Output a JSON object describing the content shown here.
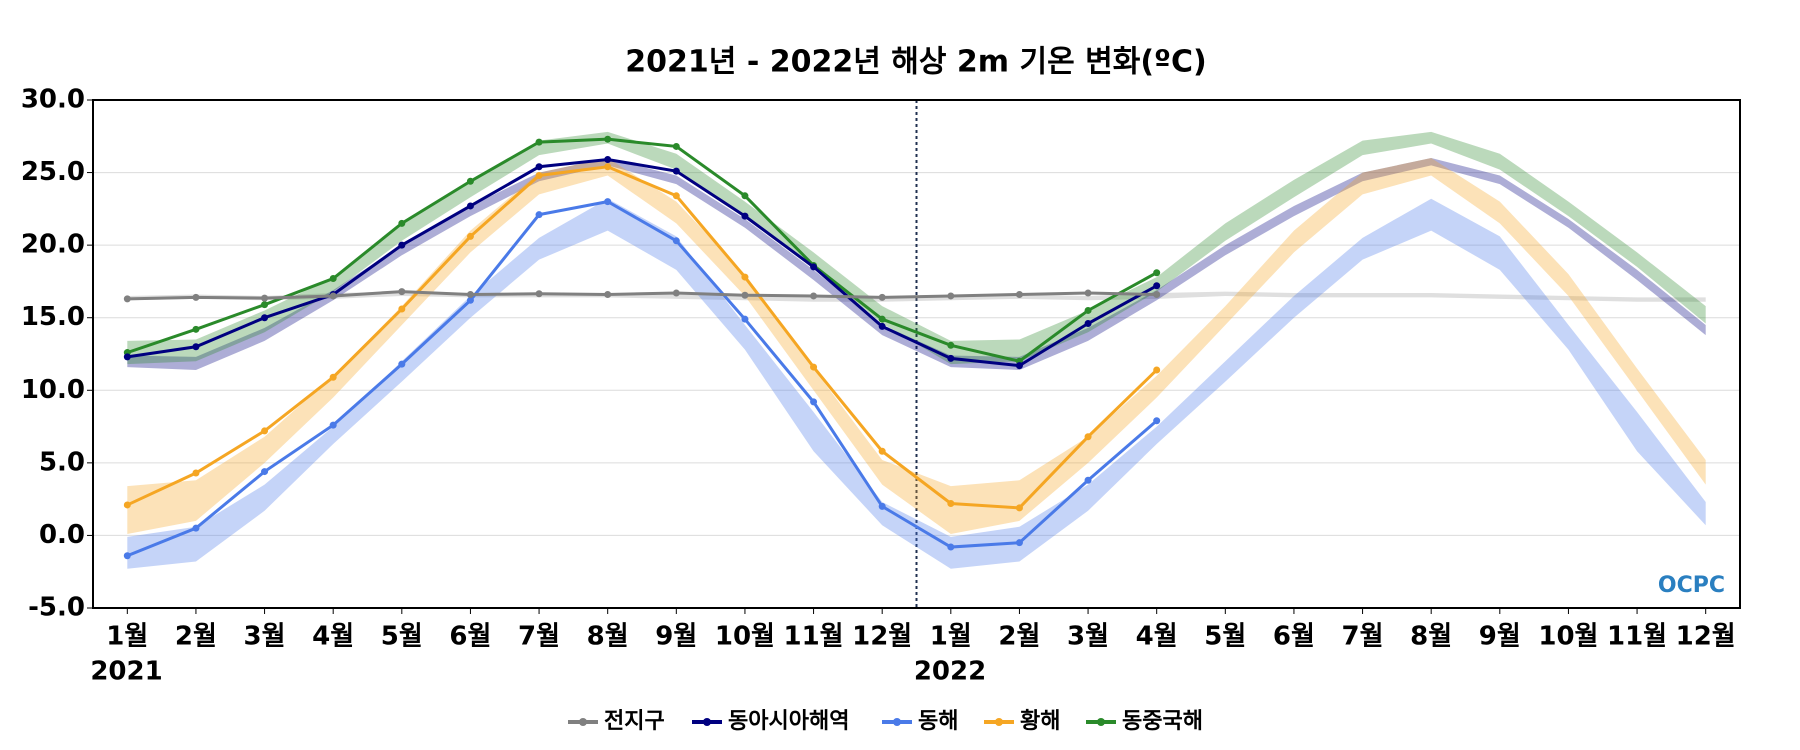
{
  "chart_data": {
    "type": "line",
    "title": "2021년 - 2022년 해상 2m 기온 변화(ºC)",
    "categories": [
      "1월",
      "2월",
      "3월",
      "4월",
      "5월",
      "6월",
      "7월",
      "8월",
      "9월",
      "10월",
      "11월",
      "12월",
      "1월",
      "2월",
      "3월",
      "4월",
      "5월",
      "6월",
      "7월",
      "8월",
      "9월",
      "10월",
      "11월",
      "12월"
    ],
    "year_labels": [
      "2021",
      "2022"
    ],
    "logo": "OCPC",
    "ylim": [
      -5,
      30
    ],
    "yticks": [
      {
        "value": -5,
        "label": "-5.0"
      },
      {
        "value": 0,
        "label": "0.0"
      },
      {
        "value": 5,
        "label": "5.0"
      },
      {
        "value": 10,
        "label": "10.0"
      },
      {
        "value": 15,
        "label": "15.0"
      },
      {
        "value": 20,
        "label": "20.0"
      },
      {
        "value": 25,
        "label": "25.0"
      },
      {
        "value": 30,
        "label": "30.0"
      }
    ],
    "grid": true,
    "legend": "bottom",
    "series": [
      {
        "name": "전지구",
        "color": "#808080",
        "values": [
          16.3,
          16.4,
          16.35,
          16.5,
          16.8,
          16.6,
          16.65,
          16.6,
          16.7,
          16.55,
          16.5,
          16.4,
          16.5,
          16.6,
          16.7,
          16.6,
          null,
          null,
          null,
          null,
          null,
          null,
          null,
          null
        ],
        "range_low": [
          16.2,
          16.3,
          16.2,
          16.3,
          16.5,
          16.4,
          16.4,
          16.4,
          16.3,
          16.2,
          16.1,
          16.1,
          16.2,
          16.3,
          16.2,
          16.3,
          16.5,
          16.4,
          16.4,
          16.4,
          16.3,
          16.2,
          16.1,
          16.1
        ],
        "range_high": [
          16.5,
          16.6,
          16.5,
          16.7,
          16.8,
          16.7,
          16.7,
          16.7,
          16.6,
          16.5,
          16.4,
          16.4,
          16.5,
          16.6,
          16.5,
          16.7,
          16.8,
          16.7,
          16.7,
          16.7,
          16.6,
          16.5,
          16.4,
          16.4
        ]
      },
      {
        "name": "동아시아해역",
        "color": "#000080",
        "values": [
          12.3,
          13.0,
          15.0,
          16.6,
          20.0,
          22.7,
          25.4,
          25.9,
          25.1,
          22.0,
          18.5,
          14.4,
          12.2,
          11.7,
          14.6,
          17.2,
          null,
          null,
          null,
          null,
          null,
          null,
          null,
          null
        ],
        "range_low": [
          11.6,
          11.4,
          13.4,
          16.2,
          19.3,
          22.0,
          24.4,
          25.5,
          24.2,
          21.2,
          17.6,
          13.8,
          11.6,
          11.4,
          13.4,
          16.2,
          19.3,
          22.0,
          24.4,
          25.5,
          24.2,
          21.2,
          17.6,
          13.8
        ],
        "range_high": [
          12.4,
          12.3,
          14.3,
          16.9,
          20.0,
          22.7,
          25.0,
          26.0,
          24.8,
          21.8,
          18.3,
          14.5,
          12.4,
          12.3,
          14.3,
          16.9,
          20.0,
          22.7,
          25.0,
          26.0,
          24.8,
          21.8,
          18.3,
          14.5
        ]
      },
      {
        "name": "동해",
        "color": "#4a7ae8",
        "values": [
          -1.4,
          0.5,
          4.4,
          7.6,
          11.8,
          16.2,
          22.1,
          23.0,
          20.3,
          14.9,
          9.2,
          2.0,
          -0.8,
          -0.5,
          3.8,
          7.9,
          null,
          null,
          null,
          null,
          null,
          null,
          null,
          null
        ],
        "range_low": [
          -2.3,
          -1.8,
          1.7,
          6.3,
          10.6,
          15.0,
          19.0,
          21.0,
          18.3,
          12.8,
          5.8,
          0.7,
          -2.3,
          -1.8,
          1.7,
          6.3,
          10.6,
          15.0,
          19.0,
          21.0,
          18.3,
          12.8,
          5.8,
          0.7
        ],
        "range_high": [
          -0.1,
          0.6,
          3.5,
          7.5,
          12.0,
          16.5,
          20.5,
          23.2,
          20.6,
          14.5,
          8.5,
          2.3,
          -0.1,
          0.6,
          3.5,
          7.5,
          12.0,
          16.5,
          20.5,
          23.2,
          20.6,
          14.5,
          8.5,
          2.3
        ]
      },
      {
        "name": "황해",
        "color": "#f5a623",
        "values": [
          2.1,
          4.3,
          7.2,
          10.9,
          15.6,
          20.6,
          24.8,
          25.4,
          23.4,
          17.8,
          11.6,
          5.8,
          2.2,
          1.9,
          6.8,
          11.4,
          null,
          null,
          null,
          null,
          null,
          null,
          null,
          null
        ],
        "range_low": [
          0.1,
          1.0,
          5.0,
          9.5,
          14.5,
          19.5,
          23.5,
          24.8,
          21.5,
          16.5,
          10.0,
          3.5,
          0.1,
          1.0,
          5.0,
          9.5,
          14.5,
          19.5,
          23.5,
          24.8,
          21.5,
          16.5,
          10.0,
          3.5
        ],
        "range_high": [
          3.4,
          3.8,
          6.8,
          11.0,
          15.8,
          21.0,
          25.0,
          26.0,
          23.0,
          18.0,
          11.5,
          5.2,
          3.4,
          3.8,
          6.8,
          11.0,
          15.8,
          21.0,
          25.0,
          26.0,
          23.0,
          18.0,
          11.5,
          5.2
        ]
      },
      {
        "name": "동중국해",
        "color": "#2a8a2a",
        "values": [
          12.6,
          14.2,
          15.9,
          17.7,
          21.5,
          24.4,
          27.1,
          27.3,
          26.8,
          23.4,
          18.6,
          14.9,
          13.1,
          12.0,
          15.5,
          18.1,
          null,
          null,
          null,
          null,
          null,
          null,
          null,
          null
        ],
        "range_low": [
          11.8,
          12.0,
          14.0,
          16.8,
          20.3,
          23.3,
          26.2,
          27.0,
          25.2,
          22.0,
          18.5,
          14.6,
          11.8,
          12.0,
          14.0,
          16.8,
          20.3,
          23.3,
          26.2,
          27.0,
          25.2,
          22.0,
          18.5,
          14.6
        ],
        "range_high": [
          13.4,
          13.5,
          15.5,
          17.8,
          21.5,
          24.5,
          27.2,
          27.8,
          26.3,
          23.0,
          19.5,
          15.8,
          13.4,
          13.5,
          15.5,
          17.8,
          21.5,
          24.5,
          27.2,
          27.8,
          26.3,
          23.0,
          19.5,
          15.8
        ]
      }
    ]
  }
}
